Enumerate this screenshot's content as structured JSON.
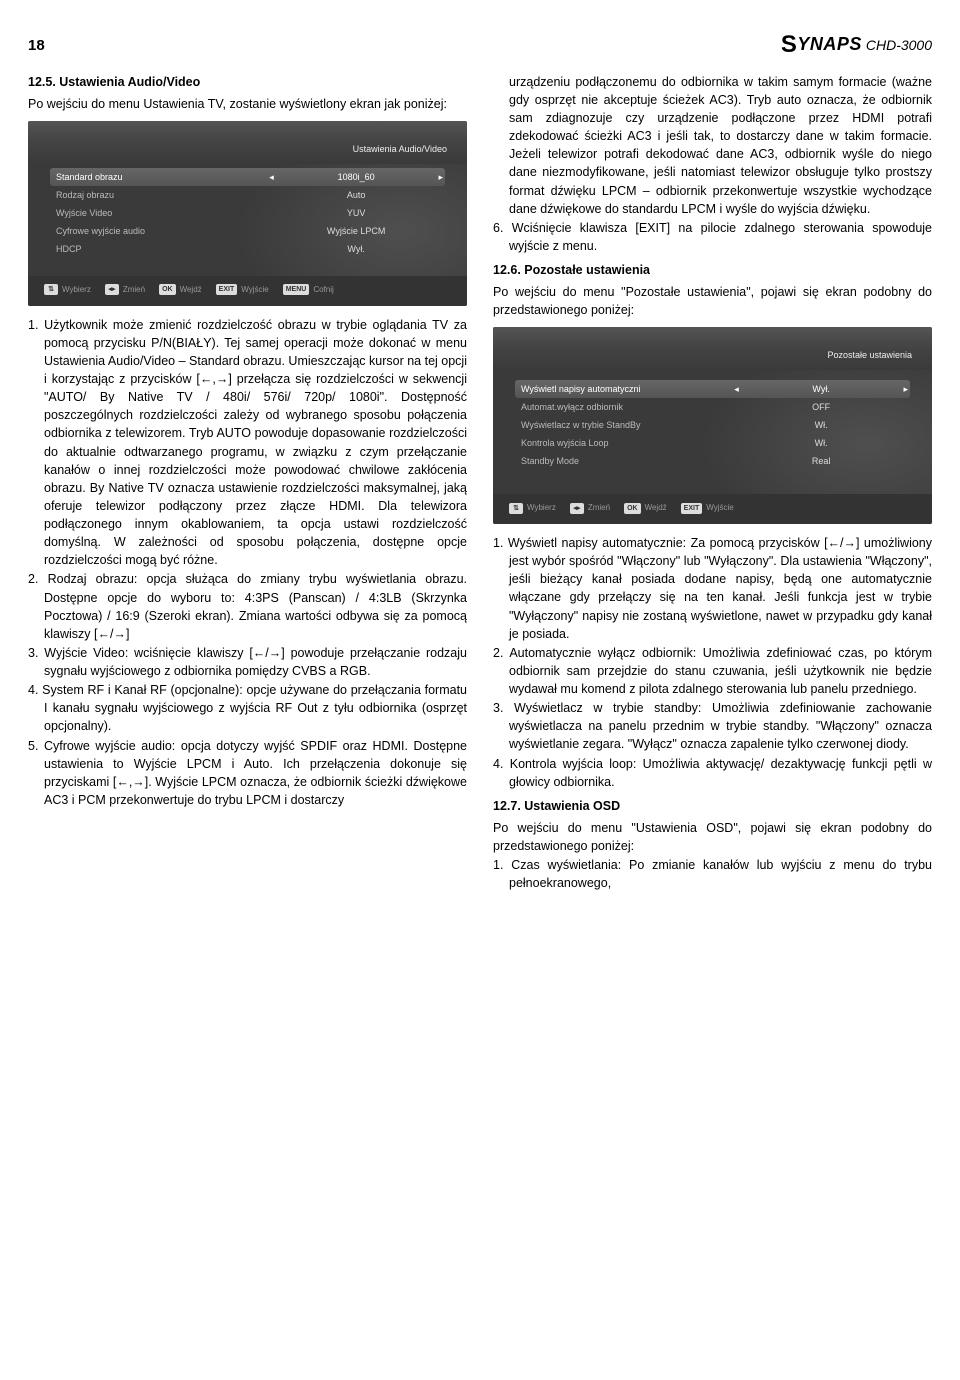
{
  "header": {
    "page_number": "18",
    "brand": "YNAPS",
    "brand_s": "S",
    "model": "CHD-3000"
  },
  "left": {
    "section": "12.5. Ustawienia Audio/Video",
    "intro": "Po wejściu do menu Ustawienia TV, zostanie wyświetlony ekran jak poniżej:",
    "screenshot": {
      "title": "Ustawienia Audio/Video",
      "rows": [
        {
          "label": "Standard obrazu",
          "val": "1080i_60",
          "active": true
        },
        {
          "label": "Rodzaj obrazu",
          "val": "Auto"
        },
        {
          "label": "Wyjście Video",
          "val": "YUV"
        },
        {
          "label": "Cyfrowe wyjście audio",
          "val": "Wyjście LPCM"
        },
        {
          "label": "HDCP",
          "val": "Wył."
        }
      ],
      "footer": [
        {
          "k": "⇅",
          "t": "Wybierz"
        },
        {
          "k": "◂▸",
          "t": "Zmień"
        },
        {
          "k": "OK",
          "t": "Wejdź"
        },
        {
          "k": "EXIT",
          "t": "Wyjście"
        },
        {
          "k": "MENU",
          "t": "Cofnij"
        }
      ]
    },
    "items": [
      "1. Użytkownik może zmienić rozdzielczość obrazu w trybie oglądania TV za pomocą przycisku P/N(BIAŁY). Tej samej operacji może dokonać w menu Ustawienia Audio/Video – Standard obrazu. Umieszczając kursor na tej opcji i korzystając z przycisków [←,→] przełącza się rozdzielczości w sekwencji \"AUTO/ By Native TV / 480i/ 576i/ 720p/ 1080i\". Dostępność poszczególnych rozdzielczości zależy od wybranego sposobu połączenia odbiornika z telewizorem. Tryb AUTO powoduje dopasowanie rozdzielczości do aktualnie odtwarzanego programu, w związku z czym przełączanie kanałów o innej rozdzielczości może powodować chwilowe zakłócenia obrazu. By Native TV oznacza ustawienie rozdzielczości maksymalnej, jaką oferuje telewizor podłączony przez złącze HDMI. Dla telewizora podłączonego innym okablowaniem, ta opcja ustawi rozdzielczość domyślną. W zależności od sposobu połączenia, dostępne opcje rozdzielczości mogą być różne.",
      "2. Rodzaj obrazu: opcja służąca do zmiany trybu wyświetlania obrazu. Dostępne opcje do wyboru to: 4:3PS (Panscan) / 4:3LB (Skrzynka Pocztowa) / 16:9 (Szeroki ekran). Zmiana wartości odbywa się za pomocą klawiszy [←/→]",
      "3. Wyjście Video: wciśnięcie klawiszy [←/→] powoduje przełączanie rodzaju sygnału wyjściowego z odbiornika pomiędzy CVBS a RGB.",
      "4. System RF i Kanał RF (opcjonalne): opcje używane do przełączania formatu I kanału sygnału wyjściowego z wyjścia RF Out z tyłu odbiornika (osprzęt opcjonalny).",
      "5. Cyfrowe wyjście audio: opcja dotyczy wyjść SPDIF oraz HDMI. Dostępne ustawienia to Wyjście LPCM i Auto. Ich przełączenia dokonuje się przyciskami [←,→]. Wyjście LPCM oznacza, że odbiornik ścieżki dźwiękowe AC3 i PCM przekonwertuje do trybu LPCM i dostarczy"
    ]
  },
  "right": {
    "carry": "urządzeniu podłączonemu do odbiornika w takim samym formacie (ważne gdy osprzęt nie akceptuje ścieżek AC3). Tryb auto oznacza, że odbiornik sam zdiagnozuje czy urządzenie podłączone przez HDMI potrafi zdekodować ścieżki AC3 i jeśli tak, to dostarczy dane w takim formacie. Jeżeli telewizor potrafi dekodować dane AC3, odbiornik wyśle do niego dane niezmodyfikowane, jeśli natomiast telewizor obsługuje tylko prostszy format dźwięku LPCM – odbiornik przekonwertuje wszystkie wychodzące dane dźwiękowe do standardu LPCM i wyśle do wyjścia dźwięku.",
    "item6": "6. Wciśnięcie klawisza [EXIT] na pilocie zdalnego sterowania spowoduje wyjście z menu.",
    "section126": "12.6. Pozostałe ustawienia",
    "intro126": "Po wejściu do menu \"Pozostałe ustawienia\", pojawi się ekran podobny do przedstawionego poniżej:",
    "screenshot2": {
      "title": "Pozostałe ustawienia",
      "rows": [
        {
          "label": "Wyświetl napisy automatyczni",
          "val": "Wył.",
          "active": true
        },
        {
          "label": "Automat.wyłącz odbiornik",
          "val": "OFF"
        },
        {
          "label": "Wyświetlacz w trybie StandBy",
          "val": "Wł."
        },
        {
          "label": "Kontrola wyjścia Loop",
          "val": "Wł."
        },
        {
          "label": "Standby Mode",
          "val": "Real"
        }
      ],
      "footer": [
        {
          "k": "⇅",
          "t": "Wybierz"
        },
        {
          "k": "◂▸",
          "t": "Zmień"
        },
        {
          "k": "OK",
          "t": "Wejdź"
        },
        {
          "k": "EXIT",
          "t": "Wyjście"
        }
      ]
    },
    "items126": [
      "1. Wyświetl napisy automatycznie: Za pomocą przycisków [←/→] umożliwiony jest wybór spośród \"Włączony\" lub \"Wyłączony\". Dla ustawienia \"Włączony\", jeśli bieżący kanał posiada dodane napisy, będą one automatycznie włączane gdy przełączy się na ten kanał. Jeśli funkcja jest w trybie \"Wyłączony\" napisy nie zostaną wyświetlone, nawet w przypadku gdy kanał je posiada.",
      "2. Automatycznie wyłącz odbiornik: Umożliwia zdefiniować czas, po którym odbiornik sam przejdzie do stanu czuwania, jeśli użytkownik nie będzie wydawał mu komend z pilota zdalnego sterowania lub panelu przedniego.",
      "3. Wyświetlacz w trybie standby: Umożliwia zdefiniowanie zachowanie wyświetlacza na panelu przednim w trybie standby. \"Włączony\" oznacza wyświetlanie zegara. \"Wyłącz\" oznacza zapalenie tylko czerwonej diody.",
      "4. Kontrola wyjścia loop: Umożliwia aktywację/ dezaktywację funkcji pętli w głowicy odbiornika."
    ],
    "section127": "12.7. Ustawienia OSD",
    "intro127": "Po wejściu do menu \"Ustawienia OSD\", pojawi się ekran podobny do przedstawionego poniżej:",
    "item127_1": "1. Czas wyświetlania: Po zmianie kanałów lub wyjściu z menu do trybu pełnoekranowego,"
  }
}
